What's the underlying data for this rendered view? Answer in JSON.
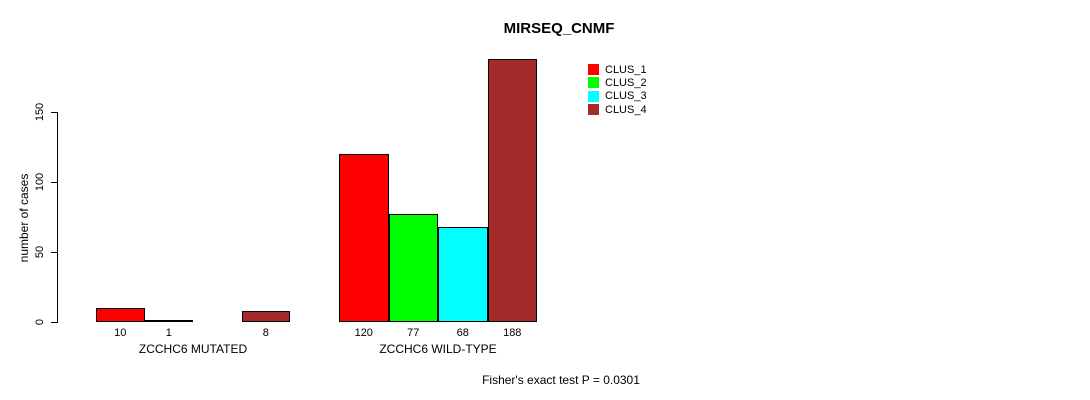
{
  "chart_data": {
    "type": "bar",
    "title": "MIRSEQ_CNMF",
    "ylabel": "number of cases",
    "xlabel": "",
    "ylim": [
      0,
      150
    ],
    "yticks": [
      0,
      50,
      100,
      150
    ],
    "grid": false,
    "legend_position": "top-right-inside",
    "categories": [
      "ZCCHC6 MUTATED",
      "ZCCHC6 WILD-TYPE"
    ],
    "series": [
      {
        "name": "CLUS_1",
        "color": "#ff0000",
        "values": [
          10,
          120
        ]
      },
      {
        "name": "CLUS_2",
        "color": "#00ff00",
        "values": [
          1,
          77
        ]
      },
      {
        "name": "CLUS_3",
        "color": "#00ffff",
        "values": [
          0,
          68
        ]
      },
      {
        "name": "CLUS_4",
        "color": "#a52a2a",
        "values": [
          8,
          188
        ]
      }
    ],
    "bar_value_labels": [
      [
        "10",
        "1",
        "",
        "8"
      ],
      [
        "120",
        "77",
        "68",
        "188"
      ]
    ],
    "annotation": "Fisher's exact test P = 0.0301",
    "bar_border_color": "#000000",
    "axis_color": "#000000"
  }
}
